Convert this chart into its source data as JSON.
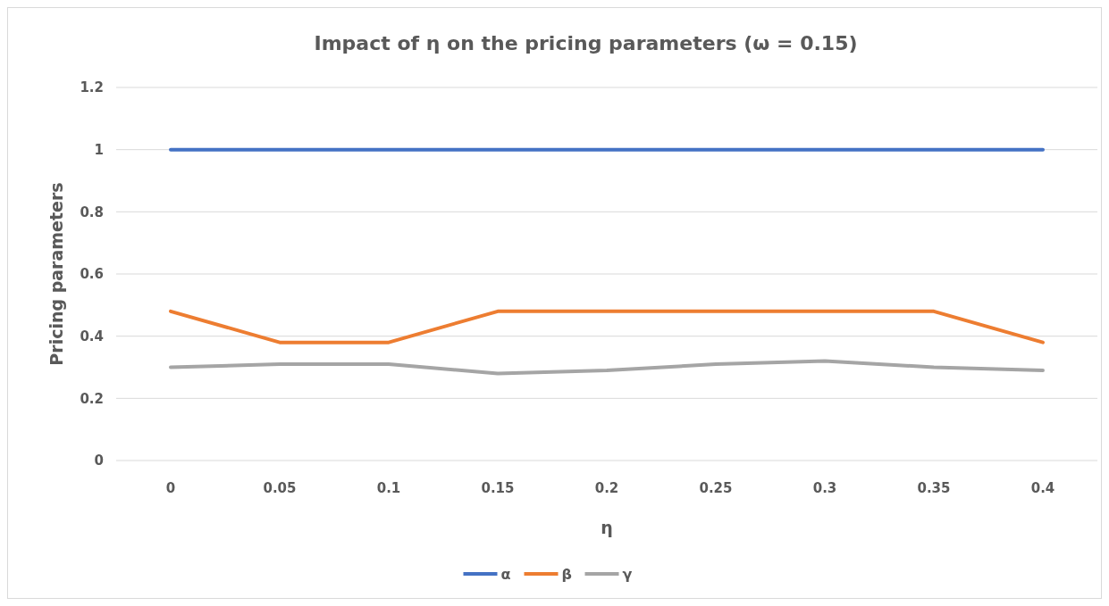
{
  "chart_data": {
    "type": "line",
    "title": "Impact of η on the pricing parameters (ω = 0.15)",
    "xlabel": "η",
    "ylabel": "Pricing parameters",
    "categories": [
      "0",
      "0.05",
      "0.1",
      "0.15",
      "0.2",
      "0.25",
      "0.3",
      "0.35",
      "0.4"
    ],
    "series": [
      {
        "name": "α",
        "color": "#4472c4",
        "values": [
          1,
          1,
          1,
          1,
          1,
          1,
          1,
          1,
          1
        ]
      },
      {
        "name": "β",
        "color": "#ed7d31",
        "values": [
          0.48,
          0.38,
          0.38,
          0.48,
          0.48,
          0.48,
          0.48,
          0.48,
          0.38
        ]
      },
      {
        "name": "γ",
        "color": "#a5a5a5",
        "values": [
          0.3,
          0.31,
          0.31,
          0.28,
          0.29,
          0.31,
          0.32,
          0.3,
          0.29
        ]
      }
    ],
    "ylim": [
      0,
      1.2
    ],
    "yticks": [
      0,
      0.2,
      0.4,
      0.6,
      0.8,
      1,
      1.2
    ],
    "grid": "y",
    "legend": "bottom",
    "marker": "none",
    "line_style": "solid"
  }
}
